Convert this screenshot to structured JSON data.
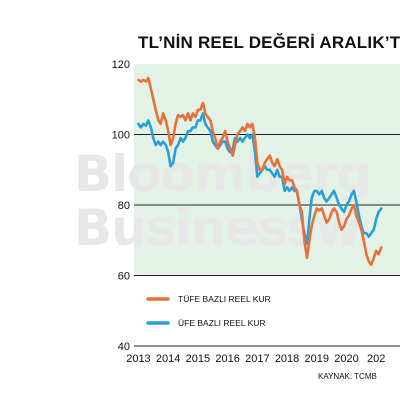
{
  "title": "TL’NİN REEL DEĞERİ ARALIK’T",
  "source": "KAYNAK: TCMB",
  "watermark": [
    "Bloomberg",
    "Businessw"
  ],
  "colors": {
    "tufe": "#e8703a",
    "ufe": "#2a9fd6",
    "band": "#e3f2e6",
    "grid": "#222222",
    "watermark": "#e7e7e7"
  },
  "chart_data": {
    "type": "line",
    "title": "TL’NİN REEL DEĞERİ ARALIK’T",
    "xlabel": "",
    "ylabel": "",
    "ylim": [
      40,
      120
    ],
    "xlim": [
      2012.85,
      2021.8
    ],
    "yticks": [
      "120",
      "100",
      "80",
      "60",
      "40"
    ],
    "xticks": [
      "2013",
      "2014",
      "2015",
      "2016",
      "2017",
      "2018",
      "2019",
      "2020",
      "202"
    ],
    "shaded_band": [
      60,
      120
    ],
    "grid": "horizontal at 60, 80, 100",
    "legend_position": "lower-left",
    "series": [
      {
        "name": "TÜFE BAZLI REEL KUR",
        "color": "#e8703a",
        "x": [
          2013.0,
          2013.08,
          2013.17,
          2013.25,
          2013.33,
          2013.42,
          2013.5,
          2013.58,
          2013.67,
          2013.75,
          2013.83,
          2013.92,
          2014.0,
          2014.08,
          2014.17,
          2014.25,
          2014.33,
          2014.42,
          2014.5,
          2014.58,
          2014.67,
          2014.75,
          2014.83,
          2014.92,
          2015.0,
          2015.08,
          2015.17,
          2015.25,
          2015.33,
          2015.42,
          2015.5,
          2015.58,
          2015.67,
          2015.75,
          2015.83,
          2015.92,
          2016.0,
          2016.08,
          2016.17,
          2016.25,
          2016.33,
          2016.42,
          2016.5,
          2016.58,
          2016.67,
          2016.75,
          2016.83,
          2016.92,
          2017.0,
          2017.08,
          2017.17,
          2017.25,
          2017.33,
          2017.42,
          2017.5,
          2017.58,
          2017.67,
          2017.75,
          2017.83,
          2017.92,
          2018.0,
          2018.08,
          2018.17,
          2018.25,
          2018.33,
          2018.42,
          2018.5,
          2018.58,
          2018.67,
          2018.75,
          2018.83,
          2018.92,
          2019.0,
          2019.08,
          2019.17,
          2019.25,
          2019.33,
          2019.42,
          2019.5,
          2019.58,
          2019.67,
          2019.75,
          2019.83,
          2019.92,
          2020.0,
          2020.08,
          2020.17,
          2020.25,
          2020.33,
          2020.42,
          2020.5,
          2020.58,
          2020.67,
          2020.75,
          2020.83,
          2020.92,
          2021.0,
          2021.08,
          2021.17
        ],
        "values": [
          115.5,
          115,
          115.5,
          115,
          116,
          113,
          110,
          107,
          104,
          103,
          106,
          104,
          101,
          97,
          99,
          103,
          105.5,
          105,
          105.5,
          104,
          106,
          104,
          106,
          105,
          107,
          107,
          109,
          106,
          105,
          104,
          101,
          99,
          96,
          98,
          99,
          101,
          98,
          96,
          94,
          97,
          100,
          101,
          102,
          101,
          103,
          102,
          103,
          99,
          92,
          90,
          90,
          92,
          93,
          94,
          92,
          91,
          93,
          91,
          90,
          86,
          88,
          87,
          87,
          85,
          84,
          80,
          78,
          70,
          65,
          70,
          74,
          77,
          79,
          78.5,
          79,
          77,
          75,
          76,
          78,
          79,
          78,
          75,
          73,
          74,
          76,
          77,
          79,
          80,
          77,
          75,
          73,
          70,
          66,
          64,
          63,
          65,
          67,
          66,
          68
        ]
      },
      {
        "name": "ÜFE BAZLI REEL KUR",
        "color": "#2a9fd6",
        "x": [
          2013.0,
          2013.08,
          2013.17,
          2013.25,
          2013.33,
          2013.42,
          2013.5,
          2013.58,
          2013.67,
          2013.75,
          2013.83,
          2013.92,
          2014.0,
          2014.08,
          2014.17,
          2014.25,
          2014.33,
          2014.42,
          2014.5,
          2014.58,
          2014.67,
          2014.75,
          2014.83,
          2014.92,
          2015.0,
          2015.08,
          2015.17,
          2015.25,
          2015.33,
          2015.42,
          2015.5,
          2015.58,
          2015.67,
          2015.75,
          2015.83,
          2015.92,
          2016.0,
          2016.08,
          2016.17,
          2016.25,
          2016.33,
          2016.42,
          2016.5,
          2016.58,
          2016.67,
          2016.75,
          2016.83,
          2016.92,
          2017.0,
          2017.08,
          2017.17,
          2017.25,
          2017.33,
          2017.42,
          2017.5,
          2017.58,
          2017.67,
          2017.75,
          2017.83,
          2017.92,
          2018.0,
          2018.08,
          2018.17,
          2018.25,
          2018.33,
          2018.42,
          2018.5,
          2018.58,
          2018.67,
          2018.75,
          2018.83,
          2018.92,
          2019.0,
          2019.08,
          2019.17,
          2019.25,
          2019.33,
          2019.42,
          2019.5,
          2019.58,
          2019.67,
          2019.75,
          2019.83,
          2019.92,
          2020.0,
          2020.08,
          2020.17,
          2020.25,
          2020.33,
          2020.42,
          2020.5,
          2020.58,
          2020.67,
          2020.75,
          2020.83,
          2020.92,
          2021.0,
          2021.08,
          2021.17
        ],
        "values": [
          103,
          102,
          103,
          102.5,
          104,
          102,
          99,
          97,
          98,
          97,
          98,
          97,
          95,
          91,
          92,
          96,
          97,
          99,
          98,
          99,
          101,
          101,
          102,
          102,
          104,
          104,
          106,
          103,
          102,
          101,
          98,
          97,
          96,
          97,
          98,
          98,
          96,
          95,
          96,
          99,
          98,
          99,
          98,
          99,
          100,
          99,
          100,
          95,
          88,
          89,
          90,
          91,
          90,
          90,
          89,
          88,
          90,
          88,
          88,
          84,
          85,
          84,
          85,
          84,
          84,
          80,
          76,
          72,
          69,
          76,
          82,
          84,
          84,
          83,
          84,
          82,
          81,
          82,
          83,
          84,
          82,
          80,
          79,
          78,
          80,
          81,
          83,
          84,
          81,
          77,
          74,
          72,
          72,
          71,
          72,
          73,
          76,
          78,
          79
        ]
      }
    ]
  }
}
